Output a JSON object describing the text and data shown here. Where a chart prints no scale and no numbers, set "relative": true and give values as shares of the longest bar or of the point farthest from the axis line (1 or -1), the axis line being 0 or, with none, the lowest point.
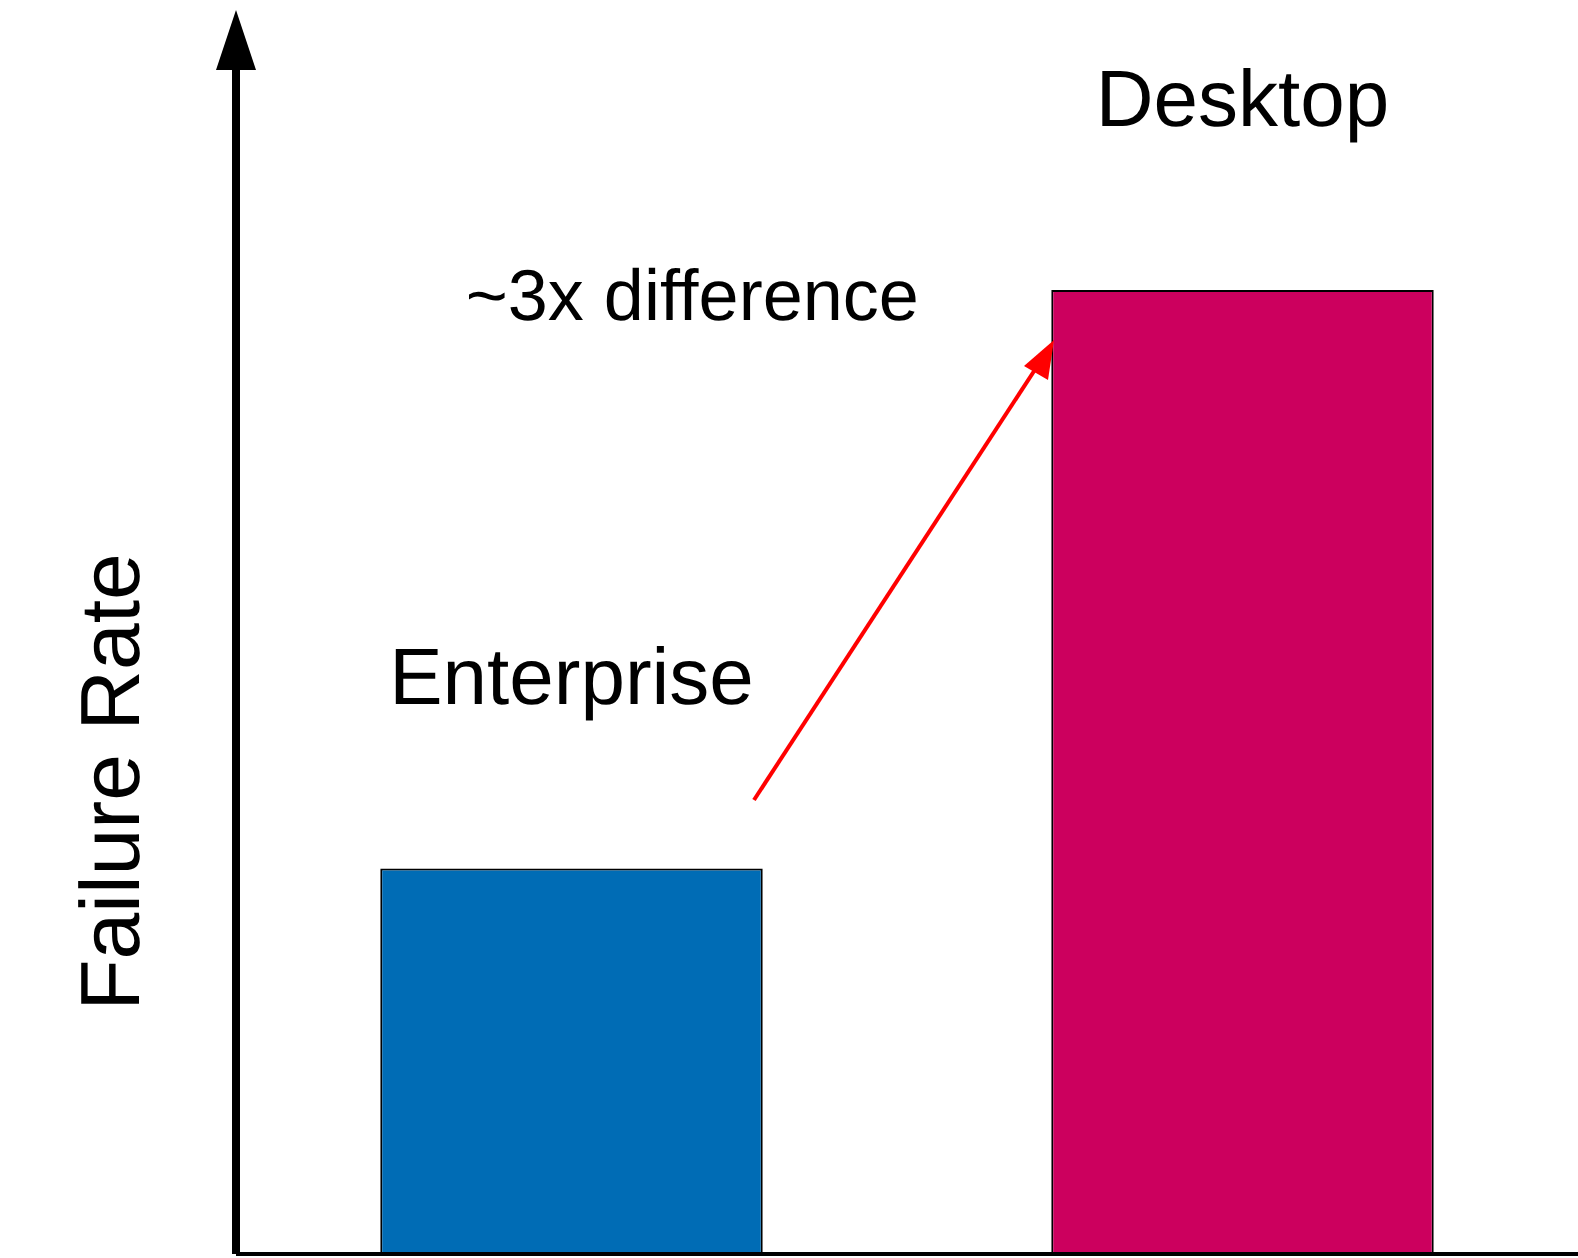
{
  "chart_data": {
    "type": "bar",
    "relative": true,
    "ylabel": "Failure Rate",
    "categories": [
      "Enterprise",
      "Desktop"
    ],
    "colors": [
      "#006cb5",
      "#cc005e"
    ],
    "values": [
      0.4,
      1
    ],
    "annotations": [
      "~3x difference"
    ],
    "grid": false,
    "legend": false
  }
}
